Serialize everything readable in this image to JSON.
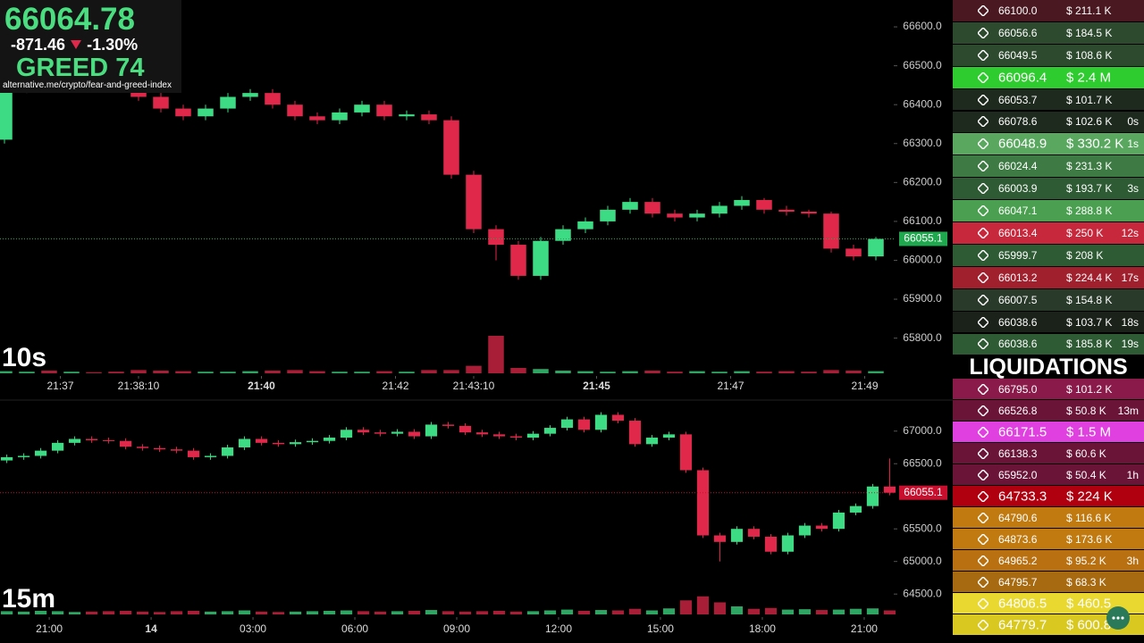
{
  "header": {
    "price": "66064.78",
    "change": "-871.46",
    "change_pct": "-1.30%",
    "sentiment": "GREED",
    "index": "74",
    "source": "alternative.me/crypto/fear-and-greed-index"
  },
  "chart_data": [
    {
      "type": "candlestick",
      "interval": "10s",
      "up_color": "#3ddc84",
      "down_color": "#e0284a",
      "last_price": 66055.1,
      "last_price_color": "#1fa84e",
      "xlim": [
        77766,
        78566
      ],
      "ylim": [
        65705,
        66669
      ],
      "vlim": [
        0,
        100
      ],
      "xticks": [
        {
          "value": 77820,
          "label": "21:37"
        },
        {
          "value": 77890,
          "label": "21:38:10"
        },
        {
          "value": 78000,
          "label": "21:40",
          "bold": true
        },
        {
          "value": 78120,
          "label": "21:42"
        },
        {
          "value": 78190,
          "label": "21:43:10"
        },
        {
          "value": 78300,
          "label": "21:45",
          "bold": true
        },
        {
          "value": 78420,
          "label": "21:47"
        },
        {
          "value": 78540,
          "label": "21:49"
        }
      ],
      "yticks": [
        {
          "value": 66600,
          "label": "66600.0"
        },
        {
          "value": 66500,
          "label": "66500.0"
        },
        {
          "value": 66400,
          "label": "66400.0"
        },
        {
          "value": 66300,
          "label": "66300.0"
        },
        {
          "value": 66200,
          "label": "66200.0"
        },
        {
          "value": 66100,
          "label": "66100.0"
        },
        {
          "value": 66000,
          "label": "66000.0"
        },
        {
          "value": 65900,
          "label": "65900.0"
        },
        {
          "value": 65800,
          "label": "65800.0"
        }
      ],
      "x": [
        77770,
        77790,
        77810,
        77830,
        77850,
        77870,
        77890,
        77910,
        77930,
        77950,
        77970,
        77990,
        78010,
        78030,
        78050,
        78070,
        78090,
        78110,
        78130,
        78150,
        78170,
        78190,
        78210,
        78230,
        78250,
        78270,
        78290,
        78310,
        78330,
        78350,
        78370,
        78390,
        78410,
        78430,
        78450,
        78470,
        78490,
        78510,
        78530,
        78550
      ],
      "ohlc": [
        [
          66310,
          66455,
          66300,
          66440
        ],
        [
          66440,
          66480,
          66430,
          66470
        ],
        [
          66470,
          66480,
          66450,
          66460
        ],
        [
          66460,
          66490,
          66450,
          66480
        ],
        [
          66480,
          66490,
          66460,
          66470
        ],
        [
          66470,
          66480,
          66450,
          66460
        ],
        [
          66460,
          66470,
          66410,
          66420
        ],
        [
          66420,
          66430,
          66380,
          66390
        ],
        [
          66390,
          66400,
          66360,
          66370
        ],
        [
          66370,
          66400,
          66360,
          66390
        ],
        [
          66390,
          66430,
          66380,
          66420
        ],
        [
          66420,
          66440,
          66410,
          66430
        ],
        [
          66430,
          66440,
          66390,
          66400
        ],
        [
          66400,
          66410,
          66360,
          66370
        ],
        [
          66370,
          66380,
          66350,
          66360
        ],
        [
          66360,
          66390,
          66350,
          66380
        ],
        [
          66380,
          66410,
          66370,
          66400
        ],
        [
          66400,
          66410,
          66360,
          66370
        ],
        [
          66370,
          66385,
          66360,
          66375
        ],
        [
          66375,
          66385,
          66350,
          66360
        ],
        [
          66360,
          66370,
          66210,
          66220
        ],
        [
          66220,
          66230,
          66070,
          66080
        ],
        [
          66080,
          66090,
          66000,
          66040
        ],
        [
          66040,
          66050,
          65950,
          65960
        ],
        [
          65960,
          66060,
          65950,
          66050
        ],
        [
          66050,
          66090,
          66040,
          66080
        ],
        [
          66080,
          66110,
          66070,
          66100
        ],
        [
          66100,
          66140,
          66090,
          66130
        ],
        [
          66130,
          66160,
          66120,
          66150
        ],
        [
          66150,
          66160,
          66110,
          66120
        ],
        [
          66120,
          66130,
          66100,
          66110
        ],
        [
          66110,
          66130,
          66100,
          66120
        ],
        [
          66120,
          66150,
          66110,
          66140
        ],
        [
          66140,
          66165,
          66130,
          66155
        ],
        [
          66155,
          66160,
          66120,
          66130
        ],
        [
          66130,
          66140,
          66115,
          66125
        ],
        [
          66125,
          66130,
          66110,
          66120
        ],
        [
          66120,
          66125,
          66020,
          66030
        ],
        [
          66030,
          66040,
          66000,
          66010
        ],
        [
          66010,
          66060,
          66000,
          66055
        ]
      ],
      "volumes": [
        4,
        3,
        5,
        3,
        2,
        3,
        6,
        5,
        4,
        3,
        3,
        4,
        5,
        6,
        4,
        3,
        3,
        4,
        3,
        6,
        6,
        14,
        70,
        10,
        8,
        5,
        4,
        3,
        4,
        5,
        3,
        4,
        3,
        4,
        3,
        4,
        3,
        6,
        5,
        4
      ]
    },
    {
      "type": "candlestick",
      "interval": "15m",
      "up_color": "#3ddc84",
      "down_color": "#e0284a",
      "last_price": 66055.1,
      "last_price_color": "#c8102e",
      "xlim": [
        -1.45,
        24.87
      ],
      "ylim": [
        64160,
        67380
      ],
      "vlim": [
        0,
        100
      ],
      "xticks": [
        {
          "value": 0,
          "label": "21:00"
        },
        {
          "value": 3,
          "label": "14",
          "bold": true
        },
        {
          "value": 6,
          "label": "03:00"
        },
        {
          "value": 9,
          "label": "06:00"
        },
        {
          "value": 12,
          "label": "09:00"
        },
        {
          "value": 15,
          "label": "12:00"
        },
        {
          "value": 18,
          "label": "15:00"
        },
        {
          "value": 21,
          "label": "18:00"
        },
        {
          "value": 24,
          "label": "21:00"
        }
      ],
      "yticks": [
        {
          "value": 67000,
          "label": "67000.0"
        },
        {
          "value": 66500,
          "label": "66500.0"
        },
        {
          "value": 65500,
          "label": "65500.0"
        },
        {
          "value": 65000,
          "label": "65000.0"
        },
        {
          "value": 64500,
          "label": "64500.0"
        }
      ],
      "x": [
        -1.25,
        -0.75,
        -0.25,
        0.25,
        0.75,
        1.25,
        1.75,
        2.25,
        2.75,
        3.25,
        3.75,
        4.25,
        4.75,
        5.25,
        5.75,
        6.25,
        6.75,
        7.25,
        7.75,
        8.25,
        8.75,
        9.25,
        9.75,
        10.25,
        10.75,
        11.25,
        11.75,
        12.25,
        12.75,
        13.25,
        13.75,
        14.25,
        14.75,
        15.25,
        15.75,
        16.25,
        16.75,
        17.25,
        17.75,
        18.25,
        18.75,
        19.25,
        19.75,
        20.25,
        20.75,
        21.25,
        21.75,
        22.25,
        22.75,
        23.25,
        23.75,
        24.25,
        24.75
      ],
      "ohlc": [
        [
          66550,
          66640,
          66510,
          66600
        ],
        [
          66600,
          66660,
          66560,
          66620
        ],
        [
          66620,
          66740,
          66580,
          66700
        ],
        [
          66700,
          66860,
          66660,
          66820
        ],
        [
          66820,
          66920,
          66780,
          66880
        ],
        [
          66880,
          66920,
          66820,
          66860
        ],
        [
          66860,
          66900,
          66810,
          66850
        ],
        [
          66850,
          66890,
          66720,
          66760
        ],
        [
          66760,
          66800,
          66700,
          66740
        ],
        [
          66740,
          66780,
          66680,
          66720
        ],
        [
          66720,
          66760,
          66660,
          66700
        ],
        [
          66700,
          66740,
          66560,
          66600
        ],
        [
          66600,
          66660,
          66560,
          66620
        ],
        [
          66620,
          66790,
          66580,
          66750
        ],
        [
          66750,
          66920,
          66710,
          66880
        ],
        [
          66880,
          66920,
          66780,
          66820
        ],
        [
          66820,
          66860,
          66760,
          66800
        ],
        [
          66800,
          66870,
          66760,
          66830
        ],
        [
          66830,
          66890,
          66790,
          66850
        ],
        [
          66850,
          66940,
          66810,
          66900
        ],
        [
          66900,
          67060,
          66860,
          67020
        ],
        [
          67020,
          67060,
          66940,
          66980
        ],
        [
          66980,
          67020,
          66920,
          66960
        ],
        [
          66960,
          67030,
          66920,
          66990
        ],
        [
          66990,
          67030,
          66880,
          66920
        ],
        [
          66920,
          67140,
          66880,
          67100
        ],
        [
          67100,
          67140,
          67040,
          67080
        ],
        [
          67080,
          67120,
          66940,
          66980
        ],
        [
          66980,
          67020,
          66910,
          66950
        ],
        [
          66950,
          66990,
          66880,
          66920
        ],
        [
          66920,
          66960,
          66860,
          66900
        ],
        [
          66900,
          67000,
          66860,
          66960
        ],
        [
          66960,
          67090,
          66920,
          67050
        ],
        [
          67050,
          67220,
          67010,
          67180
        ],
        [
          67180,
          67220,
          66980,
          67020
        ],
        [
          67020,
          67290,
          66980,
          67250
        ],
        [
          67250,
          67290,
          67120,
          67160
        ],
        [
          67160,
          67200,
          66760,
          66800
        ],
        [
          66800,
          66940,
          66760,
          66900
        ],
        [
          66900,
          66990,
          66860,
          66950
        ],
        [
          66950,
          66990,
          66360,
          66400
        ],
        [
          66400,
          66440,
          65360,
          65400
        ],
        [
          65400,
          65440,
          65000,
          65300
        ],
        [
          65300,
          65540,
          65260,
          65500
        ],
        [
          65500,
          65540,
          65340,
          65380
        ],
        [
          65380,
          65420,
          65110,
          65150
        ],
        [
          65150,
          65440,
          65110,
          65400
        ],
        [
          65400,
          65590,
          65360,
          65550
        ],
        [
          65550,
          65590,
          65460,
          65500
        ],
        [
          65500,
          65790,
          65460,
          65750
        ],
        [
          65750,
          65890,
          65710,
          65850
        ],
        [
          65850,
          66190,
          65810,
          66150
        ],
        [
          66150,
          66580,
          66015,
          66055
        ]
      ],
      "volumes": [
        8,
        7,
        9,
        8,
        6,
        7,
        8,
        9,
        7,
        6,
        8,
        9,
        7,
        8,
        10,
        7,
        6,
        7,
        8,
        9,
        10,
        8,
        7,
        8,
        9,
        11,
        8,
        7,
        8,
        9,
        7,
        8,
        10,
        12,
        9,
        11,
        10,
        14,
        10,
        15,
        35,
        45,
        30,
        20,
        14,
        16,
        12,
        13,
        11,
        12,
        14,
        15,
        10
      ]
    }
  ],
  "trades": [
    {
      "price": "66100.0",
      "amount": "$ 211.1 K",
      "color": "#4a1820"
    },
    {
      "price": "66056.6",
      "amount": "$ 184.5 K",
      "color": "#2d4a2f"
    },
    {
      "price": "66049.5",
      "amount": "$ 108.6 K",
      "color": "#2d4a2f"
    },
    {
      "price": "66096.4",
      "amount": "$ 2.4 M",
      "color": "#2ecc2e",
      "large": true
    },
    {
      "price": "66053.7",
      "amount": "$ 101.7 K",
      "color": "#1e2a1e"
    },
    {
      "price": "66078.6",
      "amount": "$ 102.6 K",
      "age": "0s",
      "color": "#1e2a1e"
    },
    {
      "price": "66048.9",
      "amount": "$ 330.2 K",
      "age": "1s",
      "color": "#5aa860",
      "large": true
    },
    {
      "price": "66024.4",
      "amount": "$ 231.3 K",
      "color": "#3e7a44"
    },
    {
      "price": "66003.9",
      "amount": "$ 193.7 K",
      "age": "3s",
      "color": "#2e5a34"
    },
    {
      "price": "66047.1",
      "amount": "$ 288.8 K",
      "color": "#4aa050"
    },
    {
      "price": "66013.4",
      "amount": "$ 250 K",
      "age": "12s",
      "color": "#c8283c"
    },
    {
      "price": "65999.7",
      "amount": "$ 208 K",
      "color": "#2e5a34"
    },
    {
      "price": "66013.2",
      "amount": "$ 224.4 K",
      "age": "17s",
      "color": "#a0202e"
    },
    {
      "price": "66007.5",
      "amount": "$ 154.8 K",
      "color": "#2a3a2a"
    },
    {
      "price": "66038.6",
      "amount": "$ 103.7 K",
      "age": "18s",
      "color": "#1a221a"
    },
    {
      "price": "66038.6",
      "amount": "$ 185.8 K",
      "age": "19s",
      "color": "#2e5a34"
    }
  ],
  "liquidations": {
    "title": "LIQUIDATIONS",
    "rows": [
      {
        "price": "66795.0",
        "amount": "$ 101.2 K",
        "color": "#8a1a4a"
      },
      {
        "price": "66526.8",
        "amount": "$ 50.8 K",
        "age": "13m",
        "color": "#6a1438"
      },
      {
        "price": "66171.5",
        "amount": "$ 1.5 M",
        "color": "#e040e0",
        "large": true
      },
      {
        "price": "66138.3",
        "amount": "$ 60.6 K",
        "color": "#6a1438"
      },
      {
        "price": "65952.0",
        "amount": "$ 50.4 K",
        "age": "1h",
        "color": "#6a1438"
      },
      {
        "price": "64733.3",
        "amount": "$ 224 K",
        "color": "#b00010",
        "large": true
      },
      {
        "price": "64790.6",
        "amount": "$ 116.6 K",
        "color": "#c07a10"
      },
      {
        "price": "64873.6",
        "amount": "$ 173.6 K",
        "color": "#c07a10"
      },
      {
        "price": "64965.2",
        "amount": "$ 95.2 K",
        "age": "3h",
        "color": "#b87010"
      },
      {
        "price": "64795.7",
        "amount": "$ 68.3 K",
        "color": "#a86a10"
      },
      {
        "price": "64806.5",
        "amount": "$ 460.5",
        "color": "#e8d830",
        "large": true
      },
      {
        "price": "64779.7",
        "amount": "$ 600.8",
        "color": "#d8c820",
        "large": true
      }
    ]
  }
}
